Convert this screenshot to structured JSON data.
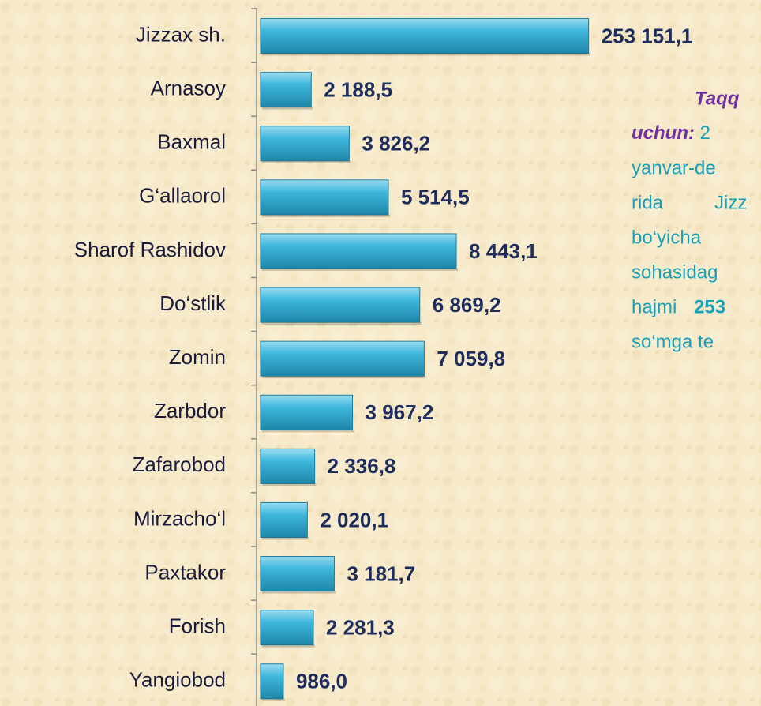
{
  "chart_data": {
    "type": "hbar",
    "categories": [
      "Jizzax sh.",
      "Arnasoy",
      "Baxmal",
      "G‘allaorol",
      "Sharof Rashidov",
      "Do‘stlik",
      "Zomin",
      "Zarbdor",
      "Zafarobod",
      "Mirzacho‘l",
      "Paxtakor",
      "Forish",
      "Yangiobod"
    ],
    "values": [
      253151.1,
      2188.5,
      3826.2,
      5514.5,
      8443.1,
      6869.2,
      7059.8,
      3967.2,
      2336.8,
      2020.1,
      3181.7,
      2281.3,
      986.0
    ],
    "value_labels": [
      "253 151,1",
      "2 188,5",
      "3 826,2",
      "5 514,5",
      "8 443,1",
      "6 869,2",
      "7 059,8",
      "3 967,2",
      "2 336,8",
      "2 020,1",
      "3 181,7",
      "2 281,3",
      "986,0"
    ],
    "color": "#35acd2",
    "xlim": [
      0,
      255000
    ],
    "axis_break": [
      9500,
      248500
    ],
    "note": [
      [
        "Taqq"
      ],
      [
        "uchun:",
        " 2"
      ],
      [
        "yanvar-de"
      ],
      [
        "rida",
        "Jizz"
      ],
      [
        "bo‘yicha"
      ],
      [
        "sohasidag"
      ],
      [
        "hajmi",
        "253"
      ],
      [
        "so‘mga te"
      ]
    ]
  }
}
